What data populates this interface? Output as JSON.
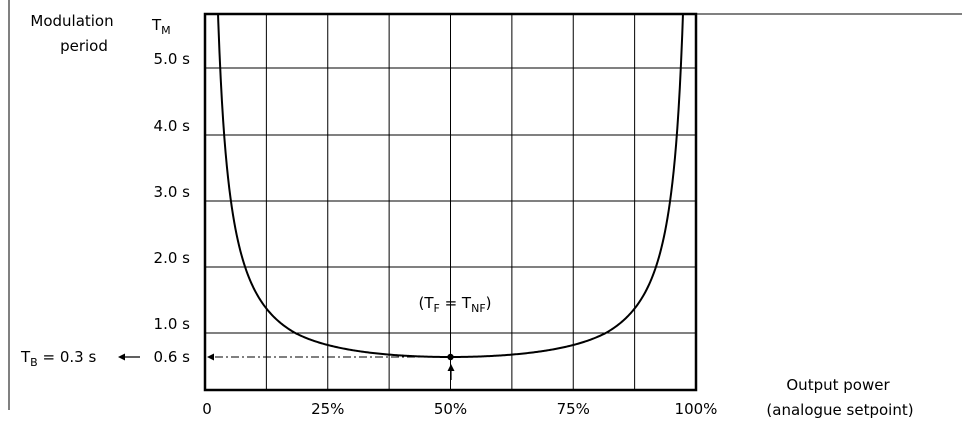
{
  "chart_data": {
    "type": "line",
    "ylabel_lines": [
      "Modulation",
      "period"
    ],
    "ylabel_symbol": {
      "main": "T",
      "sub": "M"
    },
    "xlabel_lines": [
      "Output power",
      "(analogue setpoint)"
    ],
    "xlim": [
      0,
      100
    ],
    "ylim": [
      0,
      6
    ],
    "x_ticks": [
      {
        "value": 0,
        "label": "0"
      },
      {
        "value": 25,
        "label": "25%"
      },
      {
        "value": 50,
        "label": "50%"
      },
      {
        "value": 75,
        "label": "75%"
      },
      {
        "value": 100,
        "label": "100%"
      }
    ],
    "y_ticks": [
      {
        "value": 0.6,
        "label": "0.6 s"
      },
      {
        "value": 1.0,
        "label": "1.0 s"
      },
      {
        "value": 2.0,
        "label": "2.0 s"
      },
      {
        "value": 3.0,
        "label": "3.0 s"
      },
      {
        "value": 4.0,
        "label": "4.0 s"
      },
      {
        "value": 5.0,
        "label": "5.0 s"
      }
    ],
    "grid": true,
    "series": [
      {
        "x": [
          2.4,
          3,
          4,
          5,
          7,
          10,
          12.5,
          15,
          20,
          25,
          30,
          35,
          40,
          45,
          50,
          55,
          60,
          65,
          70,
          75,
          80,
          85,
          87.5,
          90,
          93,
          95,
          96,
          97,
          97.6
        ],
        "y": [
          6.2,
          5.0,
          3.75,
          3.0,
          2.14,
          1.5,
          1.2,
          1.0,
          0.75,
          0.6,
          0.5,
          0.43,
          0.375,
          0.333,
          0.6,
          0.333,
          0.375,
          0.43,
          0.5,
          0.6,
          0.75,
          1.0,
          1.2,
          1.5,
          2.14,
          3.0,
          3.75,
          5.0,
          6.2
        ]
      }
    ],
    "annotations": {
      "minimum": {
        "x": 50,
        "y": 0.6,
        "text": {
          "main1": "(T",
          "sub1": "F",
          "mid": " = T",
          "sub2": "NF",
          "end": ")"
        }
      },
      "tb": {
        "main": "T",
        "sub": "B",
        "rest": " = 0.3 s"
      }
    }
  }
}
